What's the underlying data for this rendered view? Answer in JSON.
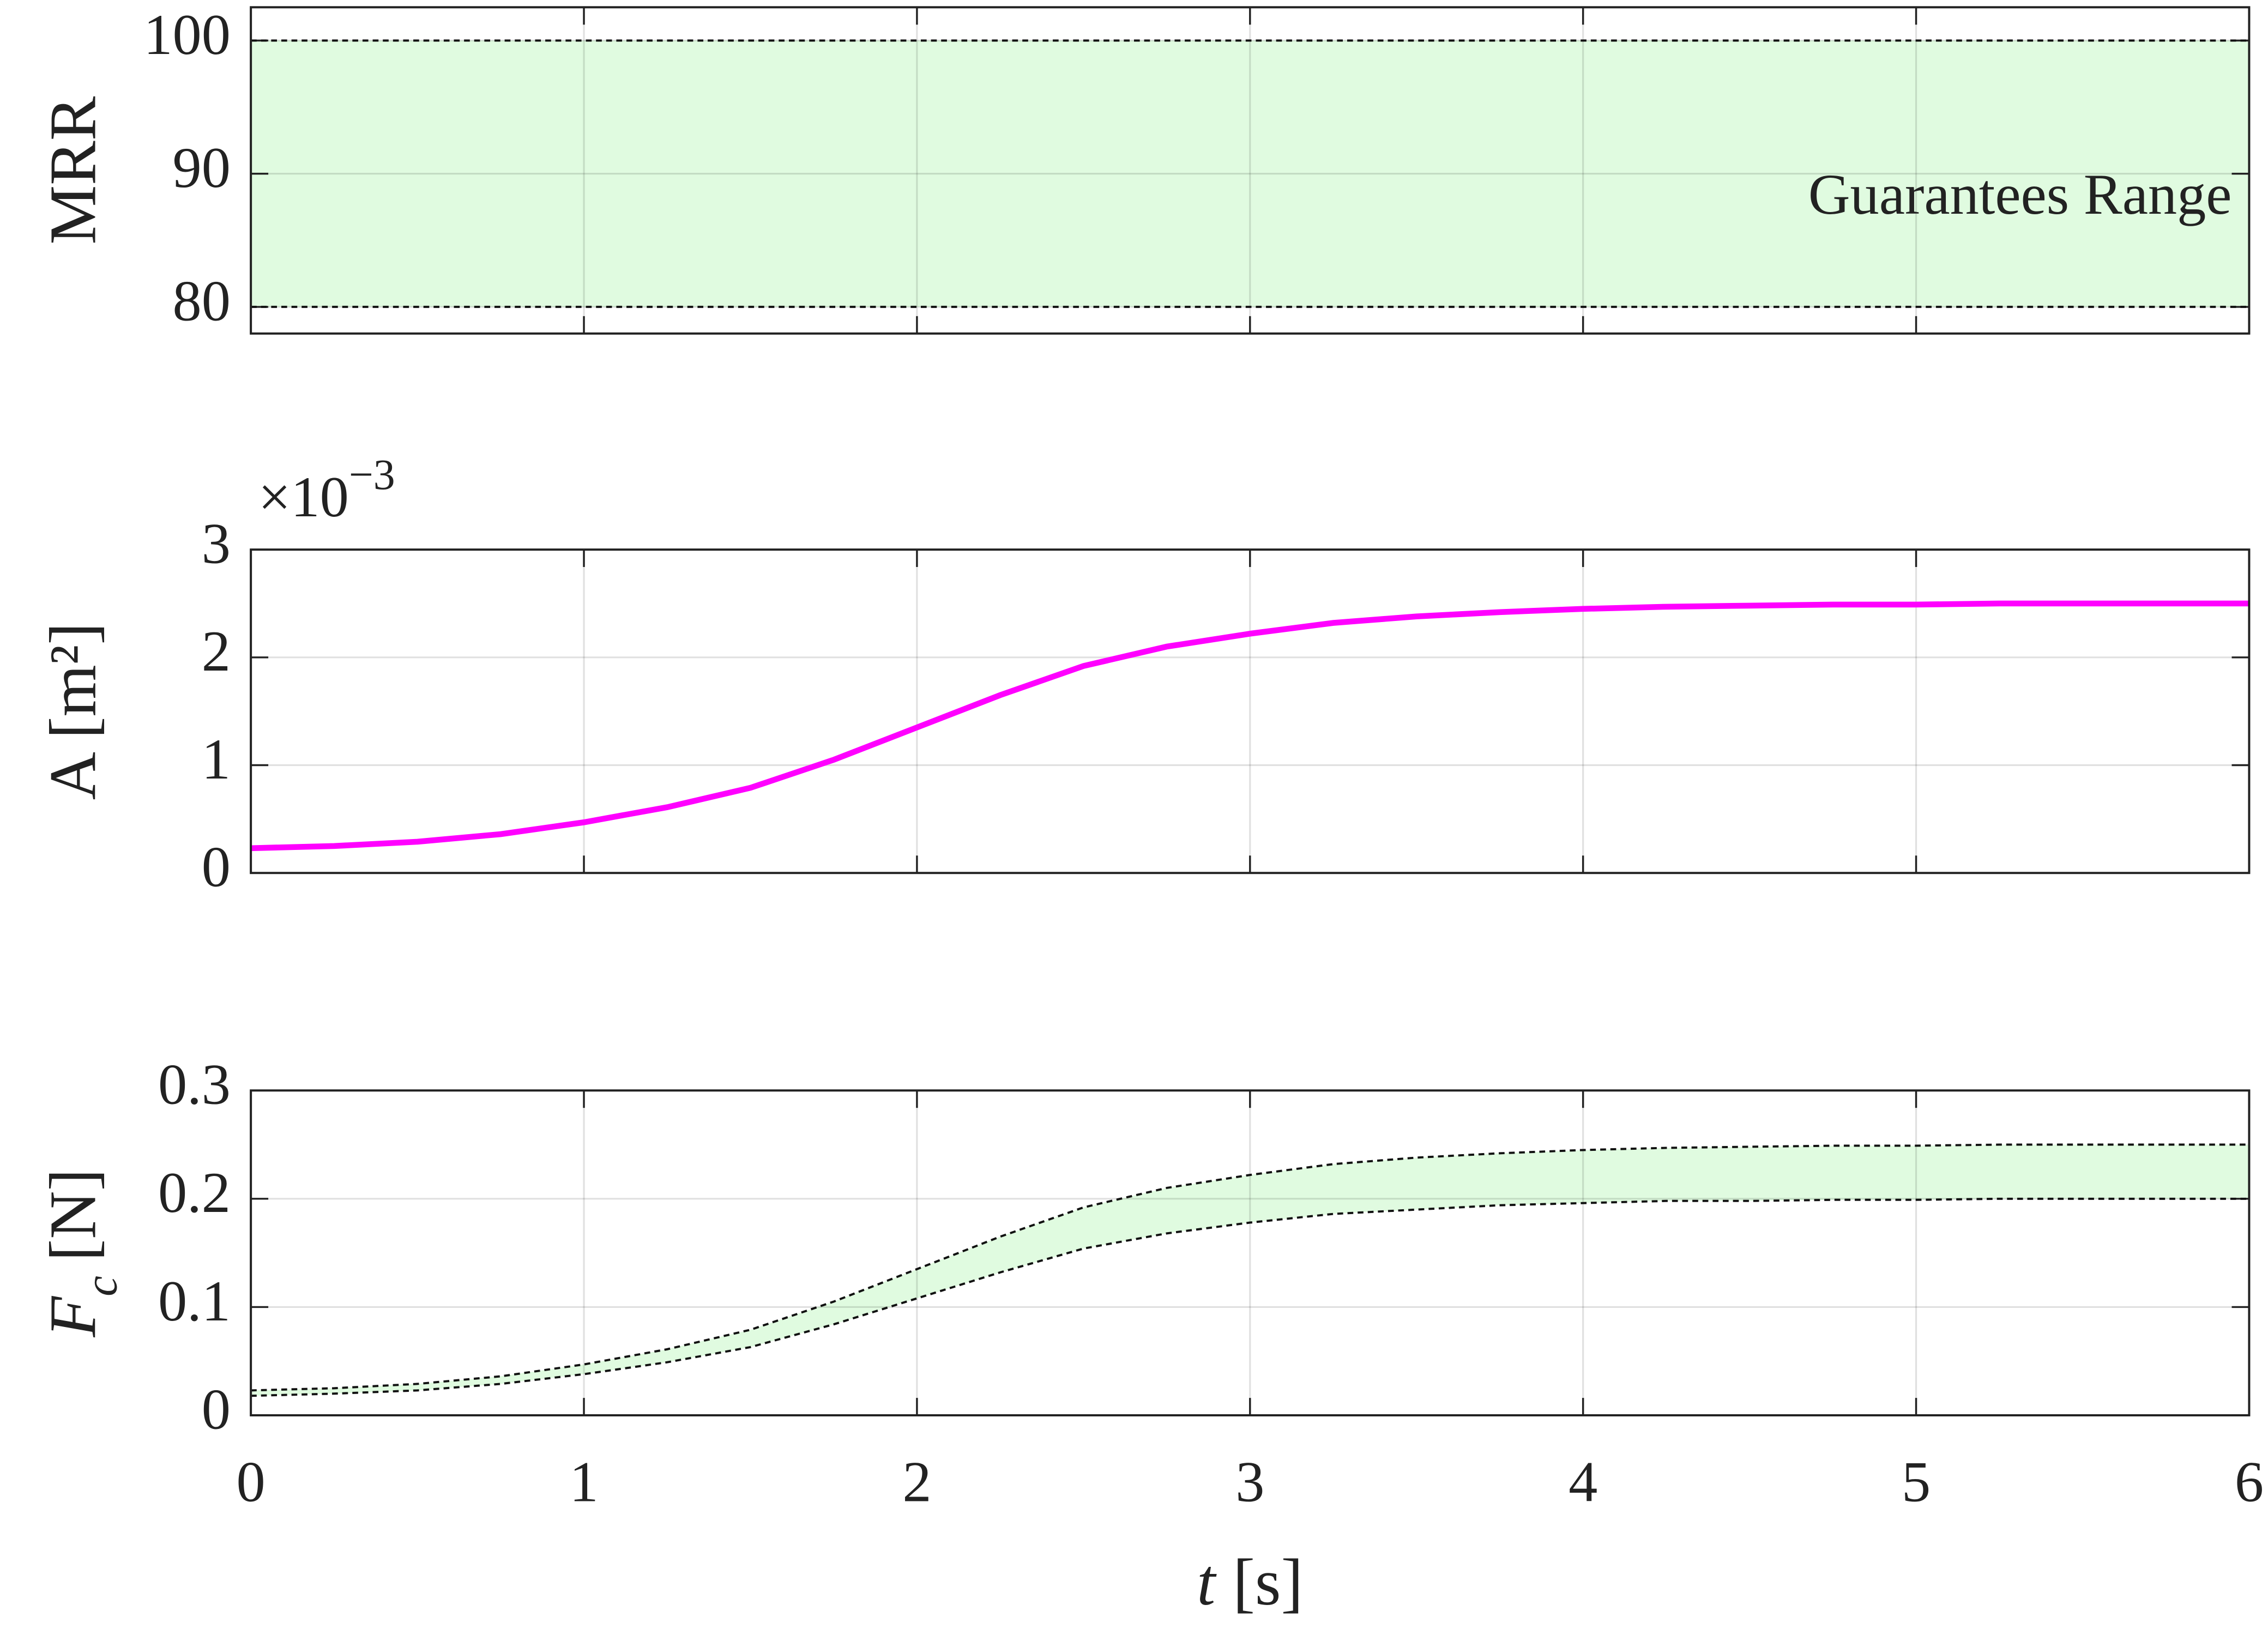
{
  "chart_data": [
    {
      "type": "band",
      "ylabel": "MRR",
      "annotation": "Guarantees Range",
      "x": [
        0,
        6
      ],
      "lower": [
        80,
        80
      ],
      "upper": [
        100,
        100
      ],
      "color": "#e0fbe0",
      "xlim": [
        0,
        6
      ],
      "xticks": [
        0,
        1,
        2,
        3,
        4,
        5,
        6
      ],
      "xtick_labels": false,
      "ylim": [
        78,
        102.5
      ],
      "yticks": [
        80,
        90,
        100
      ],
      "grid": true
    },
    {
      "type": "line",
      "ylabel": "A [m²]",
      "yscale_label": {
        "multiplier": "×10",
        "exponent": "−3"
      },
      "x": [
        0,
        0.25,
        0.5,
        0.75,
        1,
        1.25,
        1.5,
        1.75,
        2,
        2.25,
        2.5,
        2.75,
        3,
        3.25,
        3.5,
        3.75,
        4,
        4.25,
        4.5,
        4.75,
        5,
        5.25,
        5.5,
        5.75,
        6
      ],
      "series": [
        {
          "color": "#ff00ff",
          "values": [
            0.00023,
            0.00025,
            0.00029,
            0.00036,
            0.00047,
            0.00061,
            0.00079,
            0.00105,
            0.00135,
            0.00165,
            0.00192,
            0.0021,
            0.00222,
            0.00232,
            0.00238,
            0.00242,
            0.00245,
            0.00247,
            0.00248,
            0.00249,
            0.00249,
            0.0025,
            0.0025,
            0.0025,
            0.0025
          ]
        }
      ],
      "xlim": [
        0,
        6
      ],
      "xticks": [
        0,
        1,
        2,
        3,
        4,
        5,
        6
      ],
      "xtick_labels": false,
      "ylim": [
        0,
        0.003
      ],
      "yticks": [
        0,
        {
          "value": 0.001,
          "label": "1"
        },
        {
          "value": 0.002,
          "label": "2"
        },
        {
          "value": 0.003,
          "label": "3"
        }
      ],
      "grid": true
    },
    {
      "type": "band",
      "ylabel": {
        "symbol": "F",
        "subscript": "c",
        "unit": "[N]"
      },
      "x": [
        0,
        0.25,
        0.5,
        0.75,
        1,
        1.25,
        1.5,
        1.75,
        2,
        2.25,
        2.5,
        2.75,
        3,
        3.25,
        3.5,
        3.75,
        4,
        4.25,
        4.5,
        4.75,
        5,
        5.25,
        5.5,
        5.75,
        6
      ],
      "lower": [
        0.018,
        0.02,
        0.023,
        0.029,
        0.038,
        0.049,
        0.063,
        0.084,
        0.108,
        0.132,
        0.154,
        0.168,
        0.178,
        0.186,
        0.19,
        0.194,
        0.196,
        0.198,
        0.198,
        0.199,
        0.199,
        0.2,
        0.2,
        0.2,
        0.2
      ],
      "upper": [
        0.023,
        0.025,
        0.029,
        0.036,
        0.047,
        0.061,
        0.079,
        0.105,
        0.135,
        0.165,
        0.192,
        0.21,
        0.222,
        0.232,
        0.238,
        0.242,
        0.245,
        0.247,
        0.248,
        0.249,
        0.249,
        0.25,
        0.25,
        0.25,
        0.25
      ],
      "color": "#e0fbe0",
      "xlim": [
        0,
        6
      ],
      "xticks": [
        0,
        1,
        2,
        3,
        4,
        5,
        6
      ],
      "xtick_labels": true,
      "xlabel": {
        "symbol": "t",
        "unit": "[s]"
      },
      "ylim": [
        0,
        0.3
      ],
      "yticks": [
        0,
        0.1,
        0.2,
        0.3
      ],
      "grid": true
    }
  ]
}
